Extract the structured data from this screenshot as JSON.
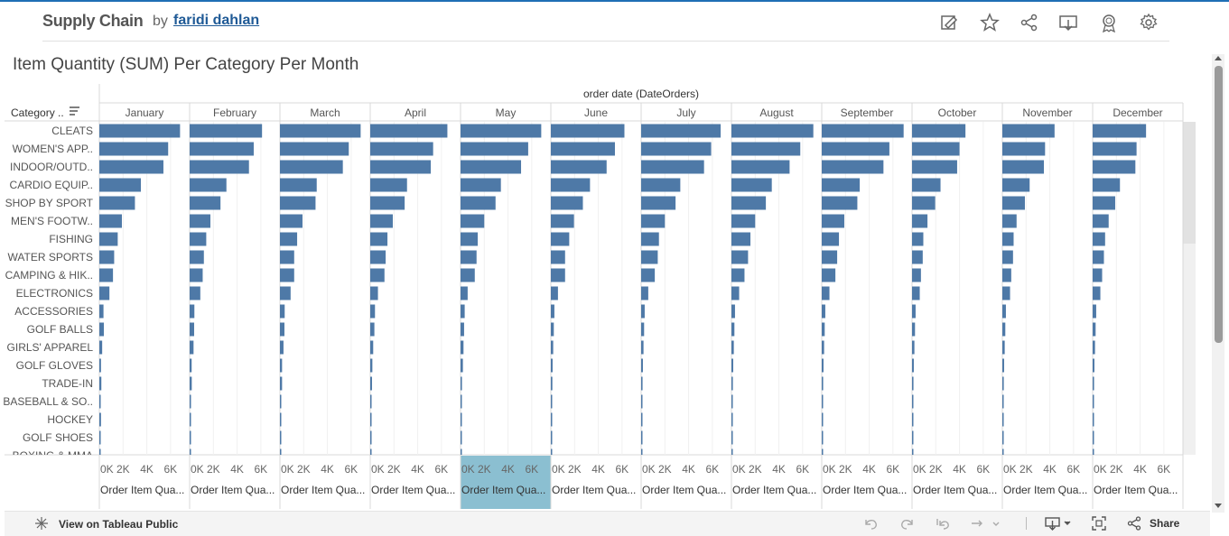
{
  "header": {
    "title": "Supply Chain",
    "by": "by",
    "author": "faridi dahlan",
    "icons": [
      "edit-icon",
      "star-icon",
      "share-icon",
      "download-icon",
      "badge-icon",
      "settings-icon"
    ]
  },
  "viz_title": "Item Quantity (SUM) Per Category Per Month",
  "footer": {
    "view_link": "View on Tableau Public",
    "share_label": "Share",
    "icons": [
      "tableau-icon",
      "undo-icon",
      "redo-icon",
      "revert-icon",
      "refresh-icon",
      "download-icon",
      "fullscreen-icon",
      "share-icon"
    ]
  },
  "chart_data": {
    "type": "bar",
    "orientation": "horizontal",
    "column_header": "order date (DateOrders)",
    "row_header": "Category ..",
    "measure_label": "Order Item Qua...",
    "highlighted_month": "May",
    "xlim": [
      0,
      7000
    ],
    "x_ticks": [
      "0K",
      "2K",
      "4K",
      "6K"
    ],
    "x_tick_values": [
      0,
      2000,
      4000,
      6000
    ],
    "months": [
      "January",
      "February",
      "March",
      "April",
      "May",
      "June",
      "July",
      "August",
      "September",
      "October",
      "November",
      "December"
    ],
    "categories": [
      "CLEATS",
      "WOMEN'S APP..",
      "INDOOR/OUTD..",
      "CARDIO EQUIP..",
      "SHOP BY SPORT",
      "MEN'S FOOTW..",
      "FISHING",
      "WATER SPORTS",
      "CAMPING & HIK..",
      "ELECTRONICS",
      "ACCESSORIES",
      "GOLF BALLS",
      "GIRLS' APPAREL",
      "GOLF GLOVES",
      "TRADE-IN",
      "BASEBALL & SO..",
      "HOCKEY",
      "GOLF SHOES",
      "BOXING & MMA"
    ],
    "series": [
      {
        "name": "January",
        "values": [
          6800,
          5800,
          5400,
          3500,
          3000,
          1900,
          1550,
          1250,
          1150,
          850,
          350,
          380,
          240,
          140,
          170,
          90,
          140,
          40,
          30
        ]
      },
      {
        "name": "February",
        "values": [
          6100,
          5400,
          5000,
          3100,
          2600,
          1750,
          1400,
          1200,
          1100,
          900,
          400,
          380,
          330,
          170,
          180,
          100,
          80,
          50,
          30
        ]
      },
      {
        "name": "March",
        "values": [
          6800,
          5800,
          5300,
          3100,
          3000,
          1900,
          1450,
          1200,
          1200,
          900,
          400,
          380,
          300,
          180,
          180,
          110,
          80,
          40,
          30
        ]
      },
      {
        "name": "April",
        "values": [
          6500,
          5300,
          5100,
          3100,
          2900,
          1900,
          1450,
          1300,
          1200,
          650,
          400,
          350,
          250,
          180,
          150,
          100,
          90,
          40,
          30
        ]
      },
      {
        "name": "May",
        "values": [
          6800,
          5700,
          5100,
          3400,
          2950,
          2000,
          1450,
          1350,
          1200,
          600,
          350,
          300,
          250,
          200,
          120,
          80,
          40,
          30,
          30
        ]
      },
      {
        "name": "June",
        "values": [
          6200,
          5400,
          4700,
          3300,
          2700,
          1950,
          1550,
          1200,
          1200,
          600,
          300,
          250,
          200,
          150,
          130,
          80,
          40,
          30,
          30
        ]
      },
      {
        "name": "July",
        "values": [
          6700,
          5900,
          5300,
          3300,
          2900,
          2000,
          1500,
          1400,
          1150,
          600,
          300,
          250,
          200,
          150,
          120,
          80,
          40,
          30,
          30
        ]
      },
      {
        "name": "August",
        "values": [
          6900,
          5800,
          4900,
          3400,
          2900,
          2000,
          1600,
          1400,
          1100,
          650,
          300,
          250,
          200,
          150,
          120,
          80,
          40,
          30,
          30
        ]
      },
      {
        "name": "September",
        "values": [
          6900,
          5700,
          5200,
          3200,
          3000,
          1900,
          1450,
          1300,
          1150,
          650,
          300,
          250,
          200,
          150,
          120,
          80,
          40,
          30,
          30
        ]
      },
      {
        "name": "October",
        "values": [
          4500,
          4000,
          3800,
          2400,
          1950,
          1300,
          950,
          900,
          750,
          650,
          300,
          250,
          200,
          150,
          120,
          80,
          40,
          30,
          30
        ]
      },
      {
        "name": "November",
        "values": [
          4400,
          3600,
          3500,
          2300,
          1900,
          1200,
          950,
          900,
          750,
          650,
          300,
          250,
          200,
          150,
          120,
          80,
          40,
          30,
          30
        ]
      },
      {
        "name": "December",
        "values": [
          4500,
          3700,
          3600,
          2300,
          1900,
          1350,
          1050,
          950,
          800,
          650,
          300,
          250,
          200,
          150,
          120,
          80,
          40,
          30,
          30
        ]
      }
    ],
    "bar_color": "#4e79a7",
    "highlight_color": "#8bbfd1",
    "grid": true
  }
}
